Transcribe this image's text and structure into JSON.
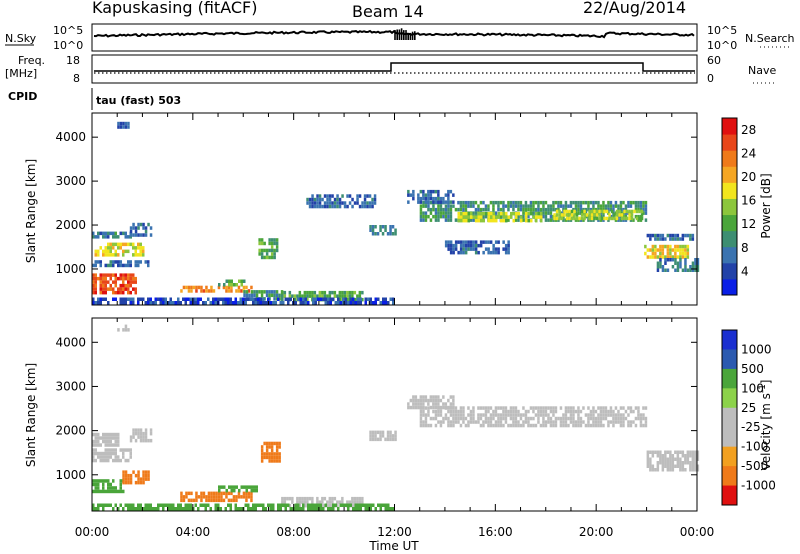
{
  "header": {
    "station": "Kapuskasing (fitACF)",
    "beam": "Beam 14",
    "date": "22/Aug/2014"
  },
  "top_strip": {
    "left_label": "N.Sky",
    "right_label": "N.Search",
    "left_ticks": [
      "10^5",
      "10^0"
    ],
    "right_ticks": [
      "10^5",
      "10^0"
    ]
  },
  "freq_strip": {
    "left_label_line1": "Freq.",
    "left_label_line2": "[MHz]",
    "left_ticks": [
      "18",
      "8"
    ],
    "right_label": "Nave",
    "right_ticks": [
      "60",
      "0"
    ]
  },
  "cpid": {
    "label": "CPID",
    "text": "tau (fast) 503"
  },
  "colors": {
    "power_bar": [
      "#0a1fe6",
      "#2242a8",
      "#3a73b0",
      "#3d8e72",
      "#4aa53a",
      "#8cc63c",
      "#f2e51e",
      "#f5a623",
      "#ef7a1a",
      "#e8461a",
      "#e01010"
    ],
    "velocity_bar": [
      "#e01010",
      "#ef7a1a",
      "#f2a020",
      "#bdbdbd",
      "#bdbdbd",
      "#8cd24a",
      "#4aa53a",
      "#2b5ab0",
      "#1a2fd0"
    ]
  },
  "chart_data": [
    {
      "type": "heatmap",
      "panel": "power",
      "xlabel": "",
      "ylabel": "Slant Range [km]",
      "x_ticks": [
        "00:00",
        "04:00",
        "08:00",
        "12:00",
        "16:00",
        "20:00",
        "00:00"
      ],
      "x_range_hours": [
        0,
        24
      ],
      "y_ticks": [
        1000,
        2000,
        3000,
        4000
      ],
      "y_range_km": [
        180,
        4550
      ],
      "colorbar_label": "Power [dB]",
      "colorbar_ticks": [
        "4",
        "8",
        "12",
        "16",
        "20",
        "24",
        "28"
      ],
      "colorbar_range": [
        0,
        30
      ],
      "patches": [
        {
          "t0": 0.0,
          "t1": 1.7,
          "r0": 450,
          "r1": 900,
          "level": 26
        },
        {
          "t0": 0.1,
          "t1": 2.0,
          "r0": 1300,
          "r1": 1600,
          "level": 18
        },
        {
          "t0": 0.0,
          "t1": 2.2,
          "r0": 1050,
          "r1": 1200,
          "level": 6
        },
        {
          "t0": 0.0,
          "t1": 1.5,
          "r0": 1700,
          "r1": 1850,
          "level": 8
        },
        {
          "t0": 1.5,
          "t1": 2.3,
          "r0": 1800,
          "r1": 2050,
          "level": 6
        },
        {
          "t0": 3.5,
          "t1": 6.3,
          "r0": 480,
          "r1": 620,
          "level": 22
        },
        {
          "t0": 5.0,
          "t1": 6.0,
          "r0": 620,
          "r1": 760,
          "level": 12
        },
        {
          "t0": 6.0,
          "t1": 7.5,
          "r0": 350,
          "r1": 520,
          "level": 10
        },
        {
          "t0": 6.6,
          "t1": 7.3,
          "r0": 1300,
          "r1": 1700,
          "level": 12
        },
        {
          "t0": 7.5,
          "t1": 10.7,
          "r0": 300,
          "r1": 500,
          "level": 12
        },
        {
          "t0": 8.5,
          "t1": 11.2,
          "r0": 2400,
          "r1": 2700,
          "level": 6
        },
        {
          "t0": 11.0,
          "t1": 12.0,
          "r0": 1800,
          "r1": 2000,
          "level": 8
        },
        {
          "t0": 13.0,
          "t1": 22.0,
          "r0": 2100,
          "r1": 2550,
          "level": 10
        },
        {
          "t0": 14.5,
          "t1": 17.8,
          "r0": 2100,
          "r1": 2300,
          "level": 16
        },
        {
          "t0": 18.3,
          "t1": 21.8,
          "r0": 2150,
          "r1": 2350,
          "level": 16
        },
        {
          "t0": 12.5,
          "t1": 14.3,
          "r0": 2550,
          "r1": 2800,
          "level": 6
        },
        {
          "t0": 14.0,
          "t1": 16.5,
          "r0": 1400,
          "r1": 1650,
          "level": 6
        },
        {
          "t0": 21.9,
          "t1": 23.6,
          "r0": 1250,
          "r1": 1550,
          "level": 18
        },
        {
          "t0": 22.4,
          "t1": 24.0,
          "r0": 1000,
          "r1": 1250,
          "level": 8
        },
        {
          "t0": 22.0,
          "t1": 23.8,
          "r0": 1650,
          "r1": 1800,
          "level": 6
        },
        {
          "t0": 0.0,
          "t1": 12.0,
          "r0": 230,
          "r1": 350,
          "level": 4
        },
        {
          "t0": 1.0,
          "t1": 1.4,
          "r0": 4250,
          "r1": 4350,
          "level": 6
        }
      ]
    },
    {
      "type": "heatmap",
      "panel": "velocity",
      "xlabel": "Time UT",
      "ylabel": "Slant Range [km]",
      "x_ticks": [
        "00:00",
        "04:00",
        "08:00",
        "12:00",
        "16:00",
        "20:00",
        "00:00"
      ],
      "x_range_hours": [
        0,
        24
      ],
      "y_ticks": [
        1000,
        2000,
        3000,
        4000
      ],
      "y_range_km": [
        180,
        4550
      ],
      "colorbar_label": "Velocity [m s^-1]",
      "colorbar_ticks": [
        "1000",
        "500",
        "100",
        "25",
        "-25",
        "-100",
        "-500",
        "-1000"
      ],
      "patches": [
        {
          "t0": 0.0,
          "t1": 1.2,
          "r0": 600,
          "r1": 900,
          "vel": 150
        },
        {
          "t0": 1.2,
          "t1": 2.2,
          "r0": 850,
          "r1": 1100,
          "vel": -300
        },
        {
          "t0": 0.0,
          "t1": 1.5,
          "r0": 1300,
          "r1": 1600,
          "vel": 0
        },
        {
          "t0": 0.0,
          "t1": 1.0,
          "r0": 1700,
          "r1": 1950,
          "vel": 0
        },
        {
          "t0": 1.5,
          "t1": 2.3,
          "r0": 1800,
          "r1": 2050,
          "vel": 0
        },
        {
          "t0": 6.7,
          "t1": 7.4,
          "r0": 1300,
          "r1": 1750,
          "vel": -300
        },
        {
          "t0": 3.5,
          "t1": 6.3,
          "r0": 450,
          "r1": 620,
          "vel": -200
        },
        {
          "t0": 5.0,
          "t1": 6.5,
          "r0": 620,
          "r1": 760,
          "vel": 150
        },
        {
          "t0": 7.5,
          "t1": 10.7,
          "r0": 300,
          "r1": 500,
          "vel": 0
        },
        {
          "t0": 13.0,
          "t1": 22.0,
          "r0": 2100,
          "r1": 2550,
          "vel": 0
        },
        {
          "t0": 12.5,
          "t1": 14.3,
          "r0": 2550,
          "r1": 2800,
          "vel": 0
        },
        {
          "t0": 22.0,
          "t1": 24.0,
          "r0": 1150,
          "r1": 1550,
          "vel": 0
        },
        {
          "t0": 11.0,
          "t1": 12.0,
          "r0": 1800,
          "r1": 2000,
          "vel": 0
        },
        {
          "t0": 0.0,
          "t1": 12.0,
          "r0": 230,
          "r1": 350,
          "vel": 150
        },
        {
          "t0": 1.0,
          "t1": 1.4,
          "r0": 4250,
          "r1": 4400,
          "vel": 0
        }
      ]
    }
  ]
}
